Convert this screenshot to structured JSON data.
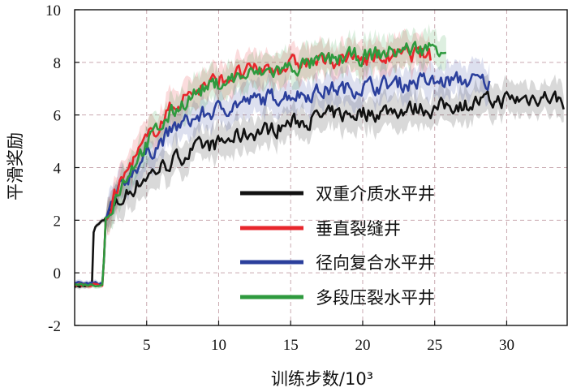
{
  "chart_data": {
    "type": "line",
    "xlabel": "训练步数/10³",
    "ylabel": "平滑奖励",
    "xlim": [
      0,
      34.2
    ],
    "ylim": [
      -2,
      10
    ],
    "xticks": [
      5,
      10,
      15,
      20,
      25,
      30
    ],
    "yticks": [
      -2,
      0,
      2,
      4,
      6,
      8,
      10
    ],
    "grid": true,
    "legend_position": "lower-right",
    "series": [
      {
        "name": "双重介质水平井",
        "color": "#111111",
        "x": [
          0,
          1.2,
          1.25,
          1.5,
          2,
          2.5,
          3,
          4,
          5,
          6,
          7,
          8,
          9,
          10,
          11,
          12,
          13,
          14,
          15,
          16,
          17,
          18,
          19,
          20,
          21,
          22,
          23,
          24,
          25,
          26,
          27,
          28,
          29,
          30,
          31,
          32,
          33,
          34
        ],
        "y": [
          -0.5,
          -0.5,
          1.4,
          1.8,
          2.0,
          2.3,
          2.6,
          3.2,
          3.7,
          4.0,
          4.3,
          4.6,
          4.8,
          4.9,
          5.1,
          5.3,
          5.4,
          5.5,
          5.7,
          5.8,
          5.9,
          6.0,
          6.0,
          6.1,
          6.1,
          6.2,
          6.2,
          6.3,
          6.2,
          6.4,
          6.4,
          6.5,
          6.5,
          6.6,
          6.6,
          6.7,
          6.7,
          6.5
        ]
      },
      {
        "name": "垂直裂缝井",
        "color": "#e8262c",
        "x": [
          0,
          2,
          2.1,
          2.5,
          3,
          4,
          5,
          6,
          7,
          8,
          9,
          10,
          11,
          12,
          13,
          14,
          15,
          16,
          17,
          18,
          19,
          20,
          21,
          22,
          23,
          24,
          24.8
        ],
        "y": [
          -0.45,
          -0.45,
          2.0,
          2.5,
          3.2,
          4.2,
          5.0,
          5.8,
          6.4,
          6.8,
          7.1,
          7.3,
          7.5,
          7.6,
          7.7,
          7.8,
          7.9,
          8.0,
          8.0,
          8.1,
          8.1,
          8.2,
          8.2,
          8.2,
          8.3,
          8.3,
          8.2
        ]
      },
      {
        "name": "径向复合水平井",
        "color": "#2b3f9c",
        "x": [
          0,
          2,
          2.1,
          2.5,
          3,
          4,
          5,
          6,
          7,
          8,
          9,
          10,
          11,
          12,
          13,
          14,
          15,
          16,
          17,
          18,
          19,
          20,
          21,
          22,
          23,
          24,
          25,
          26,
          27,
          28,
          28.8
        ],
        "y": [
          -0.4,
          -0.4,
          1.9,
          2.4,
          3.0,
          3.9,
          4.5,
          5.0,
          5.5,
          5.8,
          6.0,
          6.2,
          6.4,
          6.5,
          6.6,
          6.7,
          6.8,
          6.8,
          6.9,
          7.0,
          7.0,
          7.1,
          7.1,
          7.2,
          7.2,
          7.3,
          7.2,
          7.3,
          7.3,
          7.3,
          7.2
        ]
      },
      {
        "name": "多段压裂水平井",
        "color": "#2e9a3e",
        "x": [
          0,
          2,
          2.1,
          2.5,
          3,
          4,
          5,
          6,
          7,
          8,
          9,
          10,
          11,
          12,
          13,
          14,
          15,
          16,
          17,
          18,
          19,
          20,
          21,
          22,
          23,
          24,
          25,
          25.8
        ],
        "y": [
          -0.45,
          -0.45,
          2.0,
          2.5,
          3.1,
          4.1,
          4.9,
          5.6,
          6.2,
          6.7,
          7.0,
          7.2,
          7.4,
          7.5,
          7.6,
          7.7,
          7.8,
          7.9,
          8.0,
          8.1,
          8.2,
          8.2,
          8.3,
          8.4,
          8.5,
          8.5,
          8.6,
          8.6
        ]
      }
    ]
  }
}
